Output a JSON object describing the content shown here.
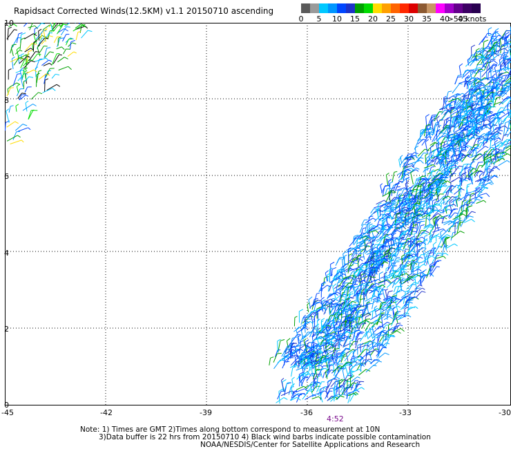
{
  "title": "Rapidsact Corrected Winds(12.5KM) v1.1 20150710 ascending",
  "colorbar": {
    "colors": [
      "#5a5a5a",
      "#9a9a9a",
      "#00c8ff",
      "#0096ff",
      "#0046ff",
      "#1e32c8",
      "#00a000",
      "#00dc00",
      "#ffdc00",
      "#ffa000",
      "#ff6400",
      "#ff2800",
      "#dc0000",
      "#8c5a32",
      "#c89664",
      "#ff00ff",
      "#a000c8",
      "#64008c",
      "#3c0064",
      "#280050"
    ],
    "labels": [
      "0",
      "5",
      "10",
      "15",
      "20",
      "25",
      "30",
      "35",
      "40",
      "45",
      ">50 knots"
    ]
  },
  "axes": {
    "x_ticks": [
      "-45",
      "-42",
      "-39",
      "-36",
      "-33",
      "-30"
    ],
    "y_ticks": [
      "0",
      "2",
      "4",
      "6",
      "8",
      "10"
    ]
  },
  "time_label": "4:52",
  "notes": [
    "Note: 1) Times are GMT 2)Times along bottom correspond to measurement at 10N",
    "3)Data buffer is 22 hrs from 20150710 4) Black wind barbs indicate possible contamination",
    "NOAA/NESDIS/Center for Satellite Applications and Research"
  ]
}
